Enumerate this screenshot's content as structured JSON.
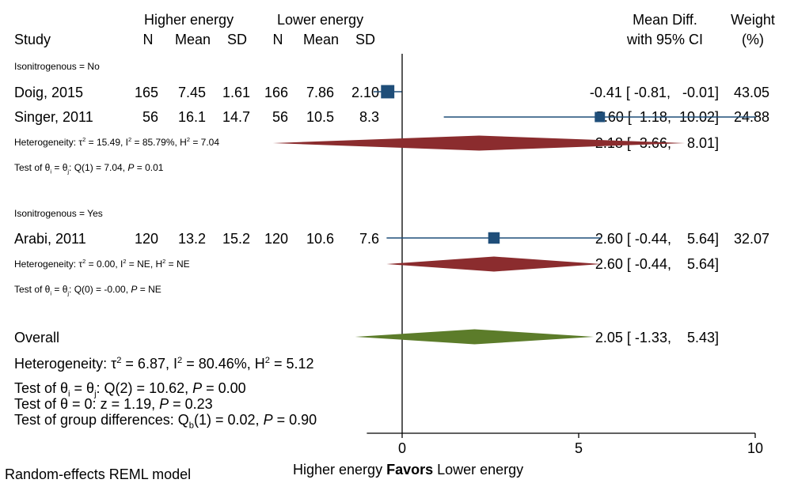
{
  "header": {
    "group_higher": "Higher energy",
    "group_lower": "Lower energy",
    "study": "Study",
    "n": "N",
    "mean": "Mean",
    "sd": "SD",
    "meandiff": "Mean Diff.",
    "ci": "with 95% CI",
    "weight": "Weight",
    "weight_unit": "(%)"
  },
  "subgroups": [
    {
      "label": "Isonitrogenous = No",
      "studies": [
        {
          "name": "Doig, 2015",
          "n1": "165",
          "mean1": "7.45",
          "sd1": "1.61",
          "n2": "166",
          "mean2": "7.86",
          "sd2": "2.10",
          "ci_text": "-0.41 [ -0.81,   -0.01]",
          "weight": "43.05"
        },
        {
          "name": "Singer, 2011",
          "n1": "56",
          "mean1": "16.1",
          "sd1": "14.7",
          "n2": "56",
          "mean2": "10.5",
          "sd2": "8.3",
          "ci_text": "5.60 [  1.18,  10.02]",
          "weight": "24.88"
        }
      ],
      "het_a": "Heterogeneity: ",
      "het_tau": "τ",
      "het_b": " = 15.49, I",
      "het_c": " = 85.79%, H",
      "het_d": " = 7.04",
      "test_a": "Test of θ",
      "test_b": " = θ",
      "test_c": ": Q(1) = 7.04, ",
      "test_p": "P",
      "test_d": " = 0.01",
      "pooled_text": "2.18 [ -3.66,    8.01]"
    },
    {
      "label": "Isonitrogenous = Yes",
      "studies": [
        {
          "name": "Arabi, 2011",
          "n1": "120",
          "mean1": "13.2",
          "sd1": "15.2",
          "n2": "120",
          "mean2": "10.6",
          "sd2": "7.6",
          "ci_text": "2.60 [ -0.44,    5.64]",
          "weight": "32.07"
        }
      ],
      "het_a": "Heterogeneity: ",
      "het_tau": "τ",
      "het_b": " = 0.00, I",
      "het_c": " = NE, H",
      "het_d": " = NE",
      "test_a": "Test of θ",
      "test_b": " = θ",
      "test_c": ": Q(0) = -0.00, ",
      "test_p": "P",
      "test_d": " = NE",
      "pooled_text": "2.60 [ -0.44,    5.64]"
    }
  ],
  "overall": {
    "label": "Overall",
    "ci_text": "2.05 [ -1.33,    5.43]",
    "het_a": "Heterogeneity: ",
    "het_tau": "τ",
    "het_b": " = 6.87, I",
    "het_c": " = 80.46%, H",
    "het_d": " = 5.12",
    "t1_a": "Test of θ",
    "t1_b": " = θ",
    "t1_c": ": Q(2) = 10.62, ",
    "t1_p": "P",
    "t1_d": " = 0.00",
    "t2_a": "Test of θ = 0: z = 1.19, ",
    "t2_p": "P",
    "t2_d": " = 0.23",
    "t3_a": "Test of group differences: Q",
    "t3_sub": "b",
    "t3_b": "(1) = 0.02, ",
    "t3_p": "P",
    "t3_d": " = 0.90"
  },
  "footer": {
    "model": "Random-effects REML model",
    "favors_left": "Higher energy ",
    "favors_bold": "Favors",
    "favors_right": " Lower energy"
  },
  "chart_data": {
    "type": "forest",
    "xlim": [
      -1,
      10
    ],
    "x_ticks": [
      0,
      5,
      10
    ],
    "null_line": 0,
    "colors": {
      "study_marker": "#1f4e79",
      "subgroup_diamond": "#8b2c2e",
      "overall_diamond": "#5c7c2a"
    },
    "studies": [
      {
        "name": "Doig, 2015",
        "subgroup": "Isonitrogenous = No",
        "estimate": -0.41,
        "lower": -0.81,
        "upper": -0.01,
        "weight": 43.05
      },
      {
        "name": "Singer, 2011",
        "subgroup": "Isonitrogenous = No",
        "estimate": 5.6,
        "lower": 1.18,
        "upper": 10.02,
        "weight": 24.88
      },
      {
        "name": "Arabi, 2011",
        "subgroup": "Isonitrogenous = Yes",
        "estimate": 2.6,
        "lower": -0.44,
        "upper": 5.64,
        "weight": 32.07
      }
    ],
    "subgroup_pooled": [
      {
        "subgroup": "Isonitrogenous = No",
        "estimate": 2.18,
        "lower": -3.66,
        "upper": 8.01
      },
      {
        "subgroup": "Isonitrogenous = Yes",
        "estimate": 2.6,
        "lower": -0.44,
        "upper": 5.64
      }
    ],
    "overall": {
      "estimate": 2.05,
      "lower": -1.33,
      "upper": 5.43
    }
  }
}
